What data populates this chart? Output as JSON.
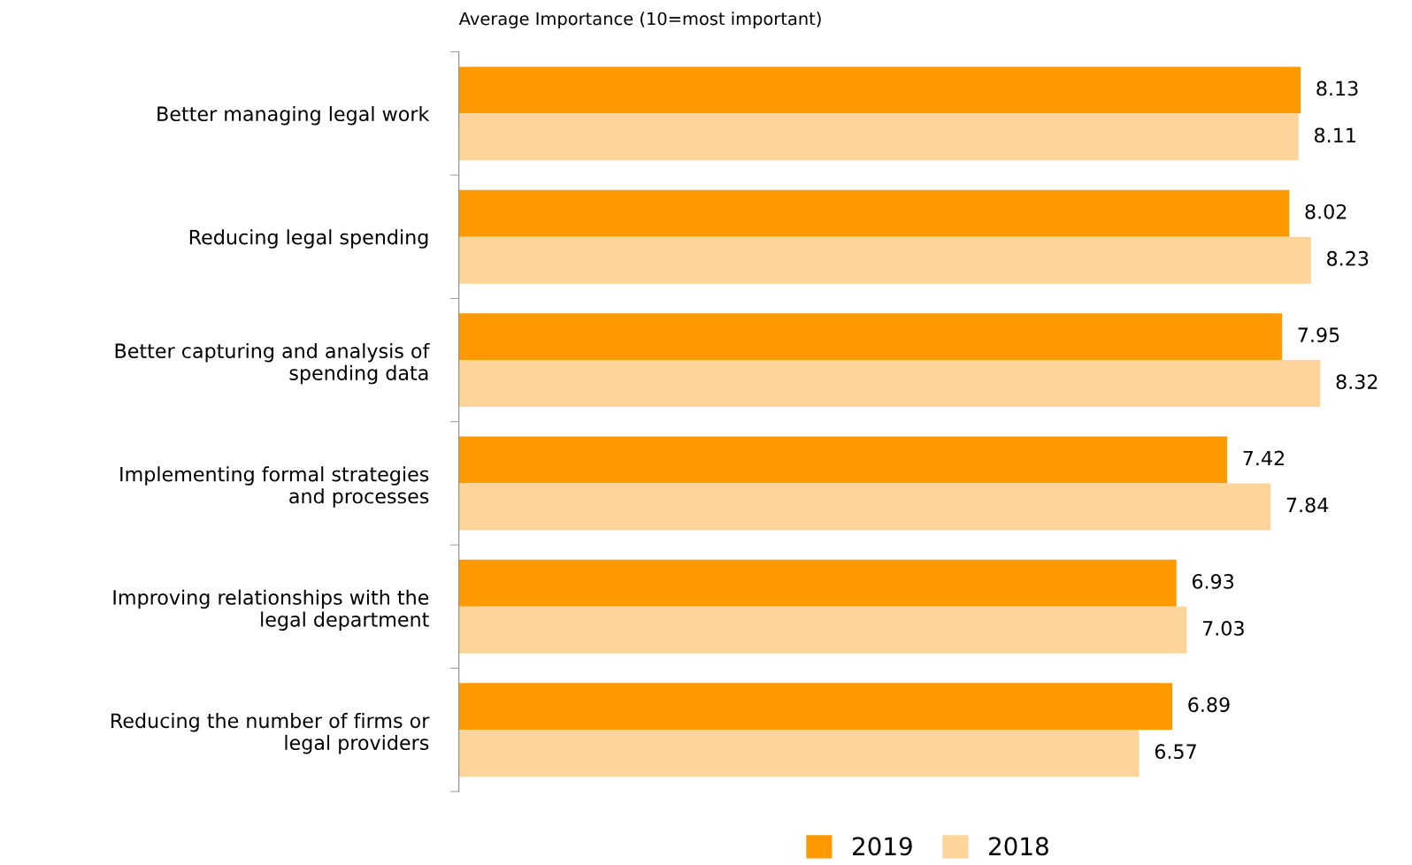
{
  "chart_data": {
    "type": "bar",
    "orientation": "horizontal",
    "title": "Average Importance (10=most important)",
    "categories": [
      "Better managing legal work",
      "Reducing legal spending",
      "Better capturing and analysis of\nspending data",
      "Implementing formal strategies\nand processes",
      "Improving relationships with the\nlegal department",
      "Reducing the number of firms or\nlegal providers"
    ],
    "series": [
      {
        "name": "2019",
        "color": "#ff9900",
        "values": [
          8.13,
          8.02,
          7.95,
          7.42,
          6.93,
          6.89
        ]
      },
      {
        "name": "2018",
        "color": "#fdd59b",
        "values": [
          8.11,
          8.23,
          8.32,
          7.84,
          7.03,
          6.57
        ]
      }
    ],
    "tick_labels": "y",
    "data_labels": true,
    "legend": "bottom",
    "grid": false
  }
}
